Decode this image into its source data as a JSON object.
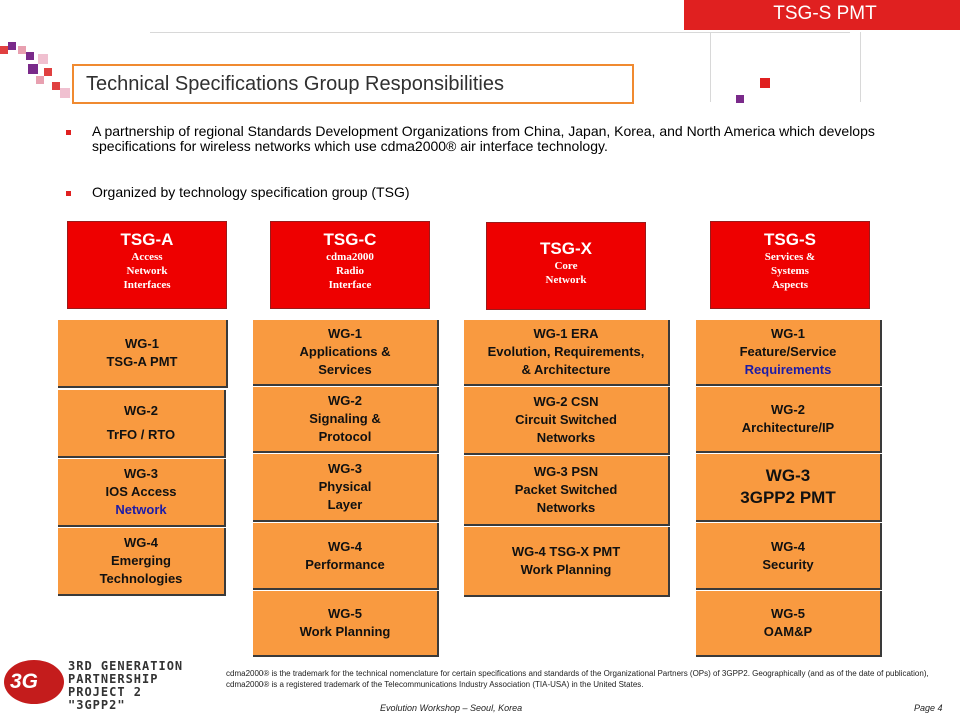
{
  "header": {
    "tag": "TSG-S PMT"
  },
  "title": "Technical Specifications Group Responsibilities",
  "bullets": [
    "A partnership of regional Standards Development Organizations from China, Japan, Korea, and North America which develops specifications for wireless networks which use cdma2000® air interface technology.",
    "Organized by technology specification group (TSG)"
  ],
  "groups": [
    {
      "name": "TSG-A",
      "sub": [
        "Access",
        "Network",
        "Interfaces"
      ],
      "wgs": [
        [
          "WG-1",
          "TSG-A PMT"
        ],
        [
          "WG-2",
          "TrFO / RTO"
        ],
        [
          "WG-3",
          "IOS Access",
          "Network"
        ],
        [
          "WG-4",
          "Emerging",
          "Technologies"
        ]
      ]
    },
    {
      "name": "TSG-C",
      "sub": [
        "cdma2000",
        "Radio",
        "Interface"
      ],
      "wgs": [
        [
          "WG-1",
          "Applications &",
          "Services"
        ],
        [
          "WG-2",
          "Signaling &",
          "Protocol"
        ],
        [
          "WG-3",
          "Physical",
          "Layer"
        ],
        [
          "WG-4",
          "Performance"
        ],
        [
          "WG-5",
          "Work Planning"
        ]
      ]
    },
    {
      "name": "TSG-X",
      "sub": [
        "Core",
        "Network"
      ],
      "wgs": [
        [
          "WG-1 ERA",
          "Evolution, Requirements,",
          "& Architecture"
        ],
        [
          "WG-2 CSN",
          "Circuit Switched",
          "Networks"
        ],
        [
          "WG-3 PSN",
          "Packet Switched",
          "Networks"
        ],
        [
          "WG-4 TSG-X PMT",
          "Work Planning"
        ]
      ]
    },
    {
      "name": "TSG-S",
      "sub": [
        "Services &",
        "Systems",
        "Aspects"
      ],
      "wgs": [
        [
          "WG-1",
          "Feature/Service",
          "Requirements"
        ],
        [
          "WG-2",
          "Architecture/IP"
        ],
        [
          "WG-3",
          "3GPP2 PMT"
        ],
        [
          "WG-4",
          "Security"
        ],
        [
          "WG-5",
          "OAM&P"
        ]
      ]
    }
  ],
  "logo": {
    "badge": "3G",
    "lines": [
      "3RD GENERATION",
      "PARTNERSHIP",
      "PROJECT 2",
      "\"3GPP2\""
    ]
  },
  "footer": {
    "note": "cdma2000® is the trademark for the technical nomenclature for certain specifications and standards of the Organizational Partners (OPs) of 3GPP2. Geographically (and as of the date of publication), cdma2000® is a registered trademark of the Telecommunications Industry Association (TIA-USA) in the United States.",
    "event": "Evolution Workshop – Seoul, Korea",
    "page": "Page 4"
  },
  "colors": {
    "red": "#ee0000",
    "orange": "#f99a40",
    "accent_blue": "#1c1ca8",
    "purple": "#7a2a8a"
  }
}
